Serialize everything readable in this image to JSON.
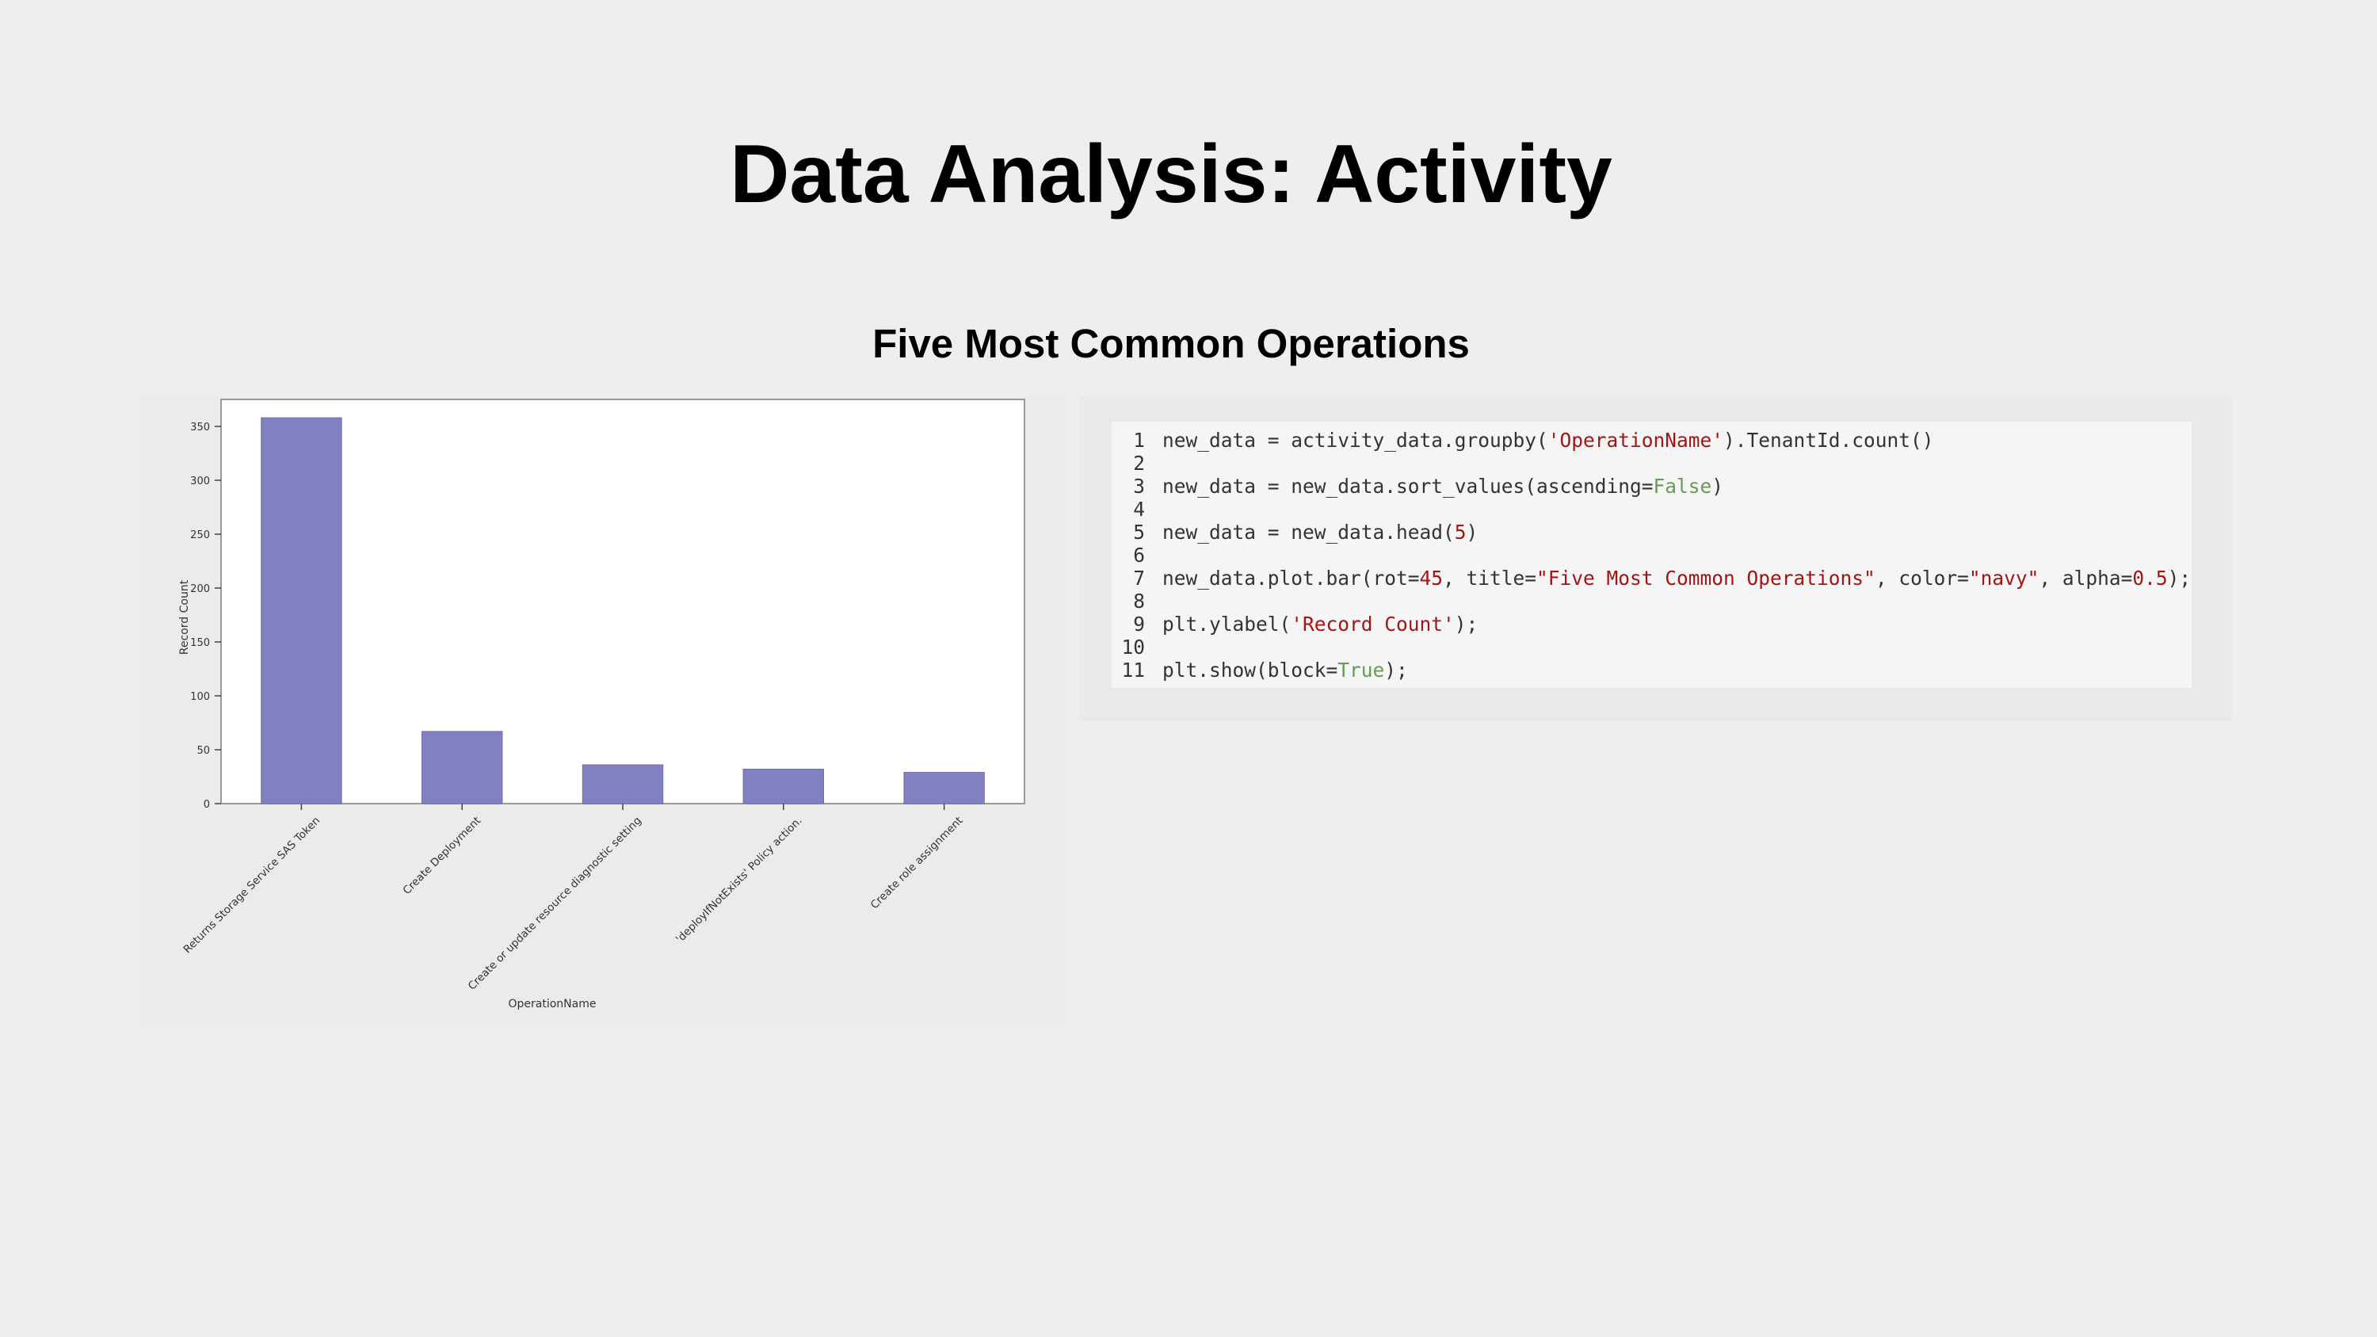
{
  "slide": {
    "title": "Data Analysis: Activity",
    "subtitle": "Five Most Common Operations"
  },
  "chart_data": {
    "type": "bar",
    "categories": [
      "Returns Storage Service SAS Token",
      "Create Deployment",
      "Create or update resource diagnostic setting",
      "'deployIfNotExists' Policy action.",
      "Create role assignment"
    ],
    "values": [
      358,
      67,
      36,
      32,
      29
    ],
    "xlabel": "OperationName",
    "ylabel": "Record Count",
    "ylim": [
      0,
      375
    ],
    "yticks": [
      0,
      50,
      100,
      150,
      200,
      250,
      300,
      350
    ],
    "bar_color": "#8280c0",
    "grid": false
  },
  "code": {
    "lines": [
      {
        "n": "1",
        "text": "new_data = activity_data.groupby('OperationName').TenantId.count()"
      },
      {
        "n": "2",
        "text": ""
      },
      {
        "n": "3",
        "text": "new_data = new_data.sort_values(ascending=False)"
      },
      {
        "n": "4",
        "text": ""
      },
      {
        "n": "5",
        "text": "new_data = new_data.head(5)"
      },
      {
        "n": "6",
        "text": ""
      },
      {
        "n": "7",
        "text": "new_data.plot.bar(rot=45, title=\"Five Most Common Operations\", color=\"navy\", alpha=0.5);"
      },
      {
        "n": "8",
        "text": ""
      },
      {
        "n": "9",
        "text": "plt.ylabel('Record Count');"
      },
      {
        "n": "10",
        "text": ""
      },
      {
        "n": "11",
        "text": "plt.show(block=True);"
      }
    ]
  }
}
